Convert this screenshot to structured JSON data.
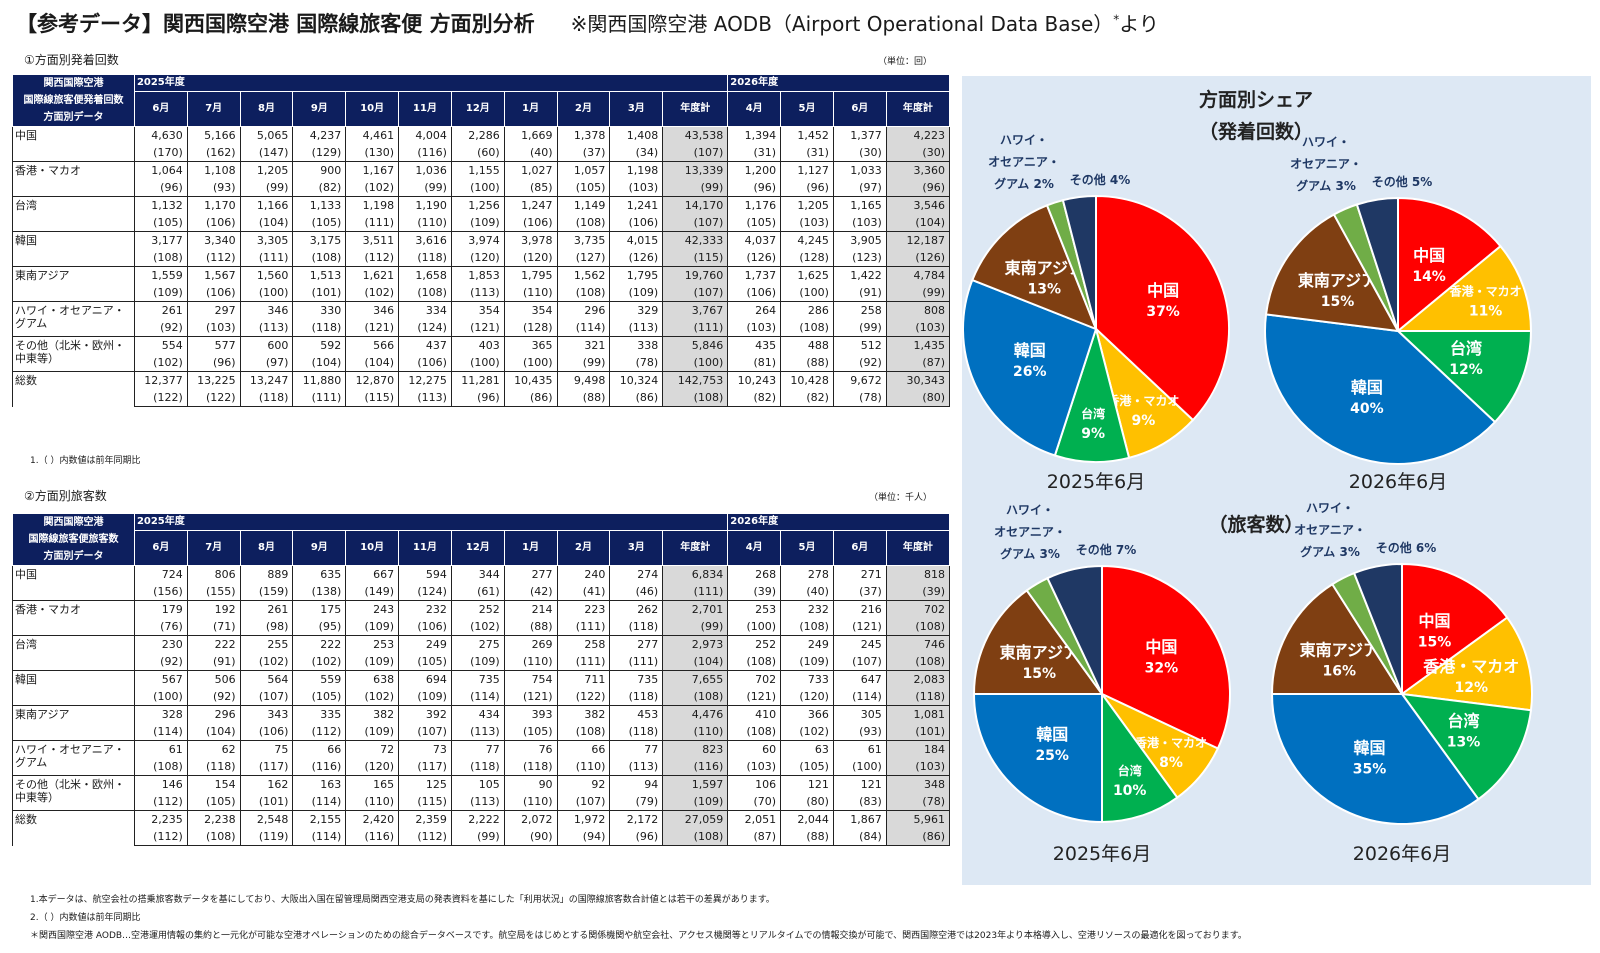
{
  "page": {
    "title": "【参考データ】関西国際空港 国際線旅客便 方面別分析",
    "source_note": "※関西国際空港 AODB（Airport Operational Data Base）",
    "source_mark": "*",
    "source_suffix": "より"
  },
  "tables": [
    {
      "section_label": "①方面別発着回数",
      "unit": "（単位：回）",
      "header": {
        "corner": [
          "関西国際空港",
          "国際線旅客便発着回数",
          "方面別データ"
        ],
        "fy_a": "2025年度",
        "fy_b": "2026年度",
        "months_a": [
          "6月",
          "7月",
          "8月",
          "9月",
          "10月",
          "11月",
          "12月",
          "1月",
          "2月",
          "3月",
          "年度計"
        ],
        "months_b": [
          "4月",
          "5月",
          "6月",
          "年度計"
        ]
      },
      "rows": [
        {
          "label": "中国",
          "values": [
            "4,630",
            "5,166",
            "5,065",
            "4,237",
            "4,461",
            "4,004",
            "2,286",
            "1,669",
            "1,378",
            "1,408",
            "43,538",
            "1,394",
            "1,452",
            "1,377",
            "4,223"
          ],
          "yoy": [
            "(170)",
            "(162)",
            "(147)",
            "(129)",
            "(130)",
            "(116)",
            "(60)",
            "(40)",
            "(37)",
            "(34)",
            "(107)",
            "(31)",
            "(31)",
            "(30)",
            "(30)"
          ]
        },
        {
          "label": "香港・マカオ",
          "values": [
            "1,064",
            "1,108",
            "1,205",
            "900",
            "1,167",
            "1,036",
            "1,155",
            "1,027",
            "1,057",
            "1,198",
            "13,339",
            "1,200",
            "1,127",
            "1,033",
            "3,360"
          ],
          "yoy": [
            "(96)",
            "(93)",
            "(99)",
            "(82)",
            "(102)",
            "(99)",
            "(100)",
            "(85)",
            "(105)",
            "(103)",
            "(99)",
            "(96)",
            "(96)",
            "(97)",
            "(96)"
          ]
        },
        {
          "label": "台湾",
          "values": [
            "1,132",
            "1,170",
            "1,166",
            "1,133",
            "1,198",
            "1,190",
            "1,256",
            "1,247",
            "1,149",
            "1,241",
            "14,170",
            "1,176",
            "1,205",
            "1,165",
            "3,546"
          ],
          "yoy": [
            "(105)",
            "(106)",
            "(104)",
            "(105)",
            "(111)",
            "(110)",
            "(109)",
            "(106)",
            "(108)",
            "(106)",
            "(107)",
            "(105)",
            "(103)",
            "(103)",
            "(104)"
          ]
        },
        {
          "label": "韓国",
          "values": [
            "3,177",
            "3,340",
            "3,305",
            "3,175",
            "3,511",
            "3,616",
            "3,974",
            "3,978",
            "3,735",
            "4,015",
            "42,333",
            "4,037",
            "4,245",
            "3,905",
            "12,187"
          ],
          "yoy": [
            "(108)",
            "(112)",
            "(111)",
            "(108)",
            "(112)",
            "(118)",
            "(120)",
            "(120)",
            "(127)",
            "(126)",
            "(115)",
            "(126)",
            "(128)",
            "(123)",
            "(126)"
          ]
        },
        {
          "label": "東南アジア",
          "values": [
            "1,559",
            "1,567",
            "1,560",
            "1,513",
            "1,621",
            "1,658",
            "1,853",
            "1,795",
            "1,562",
            "1,795",
            "19,760",
            "1,737",
            "1,625",
            "1,422",
            "4,784"
          ],
          "yoy": [
            "(109)",
            "(106)",
            "(100)",
            "(101)",
            "(102)",
            "(108)",
            "(113)",
            "(110)",
            "(108)",
            "(109)",
            "(107)",
            "(106)",
            "(100)",
            "(91)",
            "(99)"
          ]
        },
        {
          "label": "ハワイ・オセアニア・グアム",
          "values": [
            "261",
            "297",
            "346",
            "330",
            "346",
            "334",
            "354",
            "354",
            "296",
            "329",
            "3,767",
            "264",
            "286",
            "258",
            "808"
          ],
          "yoy": [
            "(92)",
            "(103)",
            "(113)",
            "(118)",
            "(121)",
            "(124)",
            "(121)",
            "(128)",
            "(114)",
            "(113)",
            "(111)",
            "(103)",
            "(108)",
            "(99)",
            "(103)"
          ]
        },
        {
          "label": "その他（北米・欧州・中東等）",
          "values": [
            "554",
            "577",
            "600",
            "592",
            "566",
            "437",
            "403",
            "365",
            "321",
            "338",
            "5,846",
            "435",
            "488",
            "512",
            "1,435"
          ],
          "yoy": [
            "(102)",
            "(96)",
            "(97)",
            "(104)",
            "(104)",
            "(106)",
            "(100)",
            "(100)",
            "(99)",
            "(78)",
            "(100)",
            "(81)",
            "(88)",
            "(92)",
            "(87)"
          ]
        },
        {
          "label": "総数",
          "values": [
            "12,377",
            "13,225",
            "13,247",
            "11,880",
            "12,870",
            "12,275",
            "11,281",
            "10,435",
            "9,498",
            "10,324",
            "142,753",
            "10,243",
            "10,428",
            "9,672",
            "30,343"
          ],
          "yoy": [
            "(122)",
            "(122)",
            "(118)",
            "(111)",
            "(115)",
            "(113)",
            "(96)",
            "(86)",
            "(88)",
            "(86)",
            "(108)",
            "(82)",
            "(82)",
            "(78)",
            "(80)"
          ]
        }
      ],
      "notes": [
        "1.（ ）内数値は前年同期比"
      ]
    },
    {
      "section_label": "②方面別旅客数",
      "unit": "（単位：千人）",
      "header": {
        "corner": [
          "関西国際空港",
          "国際線旅客便旅客数",
          "方面別データ"
        ],
        "fy_a": "2025年度",
        "fy_b": "2026年度",
        "months_a": [
          "6月",
          "7月",
          "8月",
          "9月",
          "10月",
          "11月",
          "12月",
          "1月",
          "2月",
          "3月",
          "年度計"
        ],
        "months_b": [
          "4月",
          "5月",
          "6月",
          "年度計"
        ]
      },
      "rows": [
        {
          "label": "中国",
          "values": [
            "724",
            "806",
            "889",
            "635",
            "667",
            "594",
            "344",
            "277",
            "240",
            "274",
            "6,834",
            "268",
            "278",
            "271",
            "818"
          ],
          "yoy": [
            "(156)",
            "(155)",
            "(159)",
            "(138)",
            "(149)",
            "(124)",
            "(61)",
            "(42)",
            "(41)",
            "(46)",
            "(111)",
            "(39)",
            "(40)",
            "(37)",
            "(39)"
          ]
        },
        {
          "label": "香港・マカオ",
          "values": [
            "179",
            "192",
            "261",
            "175",
            "243",
            "232",
            "252",
            "214",
            "223",
            "262",
            "2,701",
            "253",
            "232",
            "216",
            "702"
          ],
          "yoy": [
            "(76)",
            "(71)",
            "(98)",
            "(95)",
            "(109)",
            "(106)",
            "(102)",
            "(88)",
            "(111)",
            "(118)",
            "(99)",
            "(100)",
            "(108)",
            "(121)",
            "(108)"
          ]
        },
        {
          "label": "台湾",
          "values": [
            "230",
            "222",
            "255",
            "222",
            "253",
            "249",
            "275",
            "269",
            "258",
            "277",
            "2,973",
            "252",
            "249",
            "245",
            "746"
          ],
          "yoy": [
            "(92)",
            "(91)",
            "(102)",
            "(102)",
            "(109)",
            "(105)",
            "(109)",
            "(110)",
            "(111)",
            "(111)",
            "(104)",
            "(108)",
            "(109)",
            "(107)",
            "(108)"
          ]
        },
        {
          "label": "韓国",
          "values": [
            "567",
            "506",
            "564",
            "559",
            "638",
            "694",
            "735",
            "754",
            "711",
            "735",
            "7,655",
            "702",
            "733",
            "647",
            "2,083"
          ],
          "yoy": [
            "(100)",
            "(92)",
            "(107)",
            "(105)",
            "(102)",
            "(109)",
            "(114)",
            "(121)",
            "(122)",
            "(118)",
            "(108)",
            "(121)",
            "(120)",
            "(114)",
            "(118)"
          ]
        },
        {
          "label": "東南アジア",
          "values": [
            "328",
            "296",
            "343",
            "335",
            "382",
            "392",
            "434",
            "393",
            "382",
            "453",
            "4,476",
            "410",
            "366",
            "305",
            "1,081"
          ],
          "yoy": [
            "(114)",
            "(104)",
            "(106)",
            "(112)",
            "(109)",
            "(107)",
            "(113)",
            "(105)",
            "(108)",
            "(118)",
            "(110)",
            "(108)",
            "(102)",
            "(93)",
            "(101)"
          ]
        },
        {
          "label": "ハワイ・オセアニア・グアム",
          "values": [
            "61",
            "62",
            "75",
            "66",
            "72",
            "73",
            "77",
            "76",
            "66",
            "77",
            "823",
            "60",
            "63",
            "61",
            "184"
          ],
          "yoy": [
            "(108)",
            "(118)",
            "(117)",
            "(116)",
            "(120)",
            "(117)",
            "(118)",
            "(118)",
            "(110)",
            "(113)",
            "(116)",
            "(103)",
            "(105)",
            "(100)",
            "(103)"
          ]
        },
        {
          "label": "その他（北米・欧州・中東等）",
          "values": [
            "146",
            "154",
            "162",
            "163",
            "165",
            "125",
            "105",
            "90",
            "92",
            "94",
            "1,597",
            "106",
            "121",
            "121",
            "348"
          ],
          "yoy": [
            "(112)",
            "(105)",
            "(101)",
            "(114)",
            "(110)",
            "(115)",
            "(113)",
            "(110)",
            "(107)",
            "(79)",
            "(109)",
            "(70)",
            "(80)",
            "(83)",
            "(78)"
          ]
        },
        {
          "label": "総数",
          "values": [
            "2,235",
            "2,238",
            "2,548",
            "2,155",
            "2,420",
            "2,359",
            "2,222",
            "2,072",
            "1,972",
            "2,172",
            "27,059",
            "2,051",
            "2,044",
            "1,867",
            "5,961"
          ],
          "yoy": [
            "(112)",
            "(108)",
            "(119)",
            "(114)",
            "(116)",
            "(112)",
            "(99)",
            "(90)",
            "(94)",
            "(96)",
            "(108)",
            "(87)",
            "(88)",
            "(84)",
            "(86)"
          ]
        }
      ],
      "notes": [
        "1.本データは、航空会社の搭乗旅客数データを基にしており、大阪出入国在留管理局関西空港支局の発表資料を基にした「利用状況」の国際線旅客数合計値とは若干の差異があります。",
        "2.（ ）内数値は前年同期比",
        "＊関西国際空港 AODB…空港運用情報の集約と一元化が可能な空港オペレーションのための総合データベースです。航空局をはじめとする関係機関や航空会社、アクセス機関等とリアルタイムでの情報交換が可能で、関西国際空港では2023年より本格導入し、空港リソースの最適化を図っております。"
      ]
    }
  ],
  "share_panel": {
    "title": "方面別シェア",
    "subtitle_flights": "（発着回数）",
    "subtitle_pax": "（旅客数）"
  },
  "colors": {
    "header_bg": "#0d1f5e",
    "total_col_bg": "#d9d9d9",
    "panel_bg": "#dde8f4",
    "china": "#ff0000",
    "hk_macau": "#ffc000",
    "taiwan": "#00b050",
    "korea": "#0070c0",
    "se_asia": "#7f3f12",
    "hawaii": "#70ad47",
    "other": "#1f3864"
  },
  "chart_data": [
    {
      "type": "pie",
      "caption": "2025年6月",
      "group": "発着回数",
      "slices": [
        {
          "label": "中国",
          "value": 37,
          "color": "#ff0000",
          "text": "#ffffff"
        },
        {
          "label": "香港・マカオ",
          "value": 9,
          "color": "#ffc000",
          "text": "#ffffff"
        },
        {
          "label": "台湾",
          "value": 9,
          "color": "#00b050",
          "text": "#ffffff"
        },
        {
          "label": "韓国",
          "value": 26,
          "color": "#0070c0",
          "text": "#ffffff"
        },
        {
          "label": "東南アジア",
          "value": 13,
          "color": "#7f3f12",
          "text": "#ffffff"
        },
        {
          "label": "ハワイ・オセアニア・グアム",
          "value": 2,
          "color": "#70ad47",
          "text": "#1f3864"
        },
        {
          "label": "その他",
          "value": 4,
          "color": "#1f3864",
          "text": "#1f3864"
        }
      ]
    },
    {
      "type": "pie",
      "caption": "2026年6月",
      "group": "発着回数",
      "slices": [
        {
          "label": "中国",
          "value": 14,
          "color": "#ff0000",
          "text": "#ffffff"
        },
        {
          "label": "香港・マカオ",
          "value": 11,
          "color": "#ffc000",
          "text": "#ffffff"
        },
        {
          "label": "台湾",
          "value": 12,
          "color": "#00b050",
          "text": "#ffffff"
        },
        {
          "label": "韓国",
          "value": 40,
          "color": "#0070c0",
          "text": "#ffffff"
        },
        {
          "label": "東南アジア",
          "value": 15,
          "color": "#7f3f12",
          "text": "#ffffff"
        },
        {
          "label": "ハワイ・オセアニア・グアム",
          "value": 3,
          "color": "#70ad47",
          "text": "#1f3864"
        },
        {
          "label": "その他",
          "value": 5,
          "color": "#1f3864",
          "text": "#1f3864"
        }
      ]
    },
    {
      "type": "pie",
      "caption": "2025年6月",
      "group": "旅客数",
      "slices": [
        {
          "label": "中国",
          "value": 32,
          "color": "#ff0000",
          "text": "#ffffff"
        },
        {
          "label": "香港・マカオ",
          "value": 8,
          "color": "#ffc000",
          "text": "#ffffff"
        },
        {
          "label": "台湾",
          "value": 10,
          "color": "#00b050",
          "text": "#ffffff"
        },
        {
          "label": "韓国",
          "value": 25,
          "color": "#0070c0",
          "text": "#ffffff"
        },
        {
          "label": "東南アジア",
          "value": 15,
          "color": "#7f3f12",
          "text": "#ffffff"
        },
        {
          "label": "ハワイ・オセアニア・グアム",
          "value": 3,
          "color": "#70ad47",
          "text": "#1f3864"
        },
        {
          "label": "その他",
          "value": 7,
          "color": "#1f3864",
          "text": "#1f3864"
        }
      ]
    },
    {
      "type": "pie",
      "caption": "2026年6月",
      "group": "旅客数",
      "slices": [
        {
          "label": "中国",
          "value": 15,
          "color": "#ff0000",
          "text": "#ffffff"
        },
        {
          "label": "香港・マカオ",
          "value": 12,
          "color": "#ffc000",
          "text": "#ffffff"
        },
        {
          "label": "台湾",
          "value": 13,
          "color": "#00b050",
          "text": "#ffffff"
        },
        {
          "label": "韓国",
          "value": 35,
          "color": "#0070c0",
          "text": "#ffffff"
        },
        {
          "label": "東南アジア",
          "value": 16,
          "color": "#7f3f12",
          "text": "#ffffff"
        },
        {
          "label": "ハワイ・オセアニア・グアム",
          "value": 3,
          "color": "#70ad47",
          "text": "#1f3864"
        },
        {
          "label": "その他",
          "value": 6,
          "color": "#1f3864",
          "text": "#1f3864"
        }
      ]
    }
  ]
}
